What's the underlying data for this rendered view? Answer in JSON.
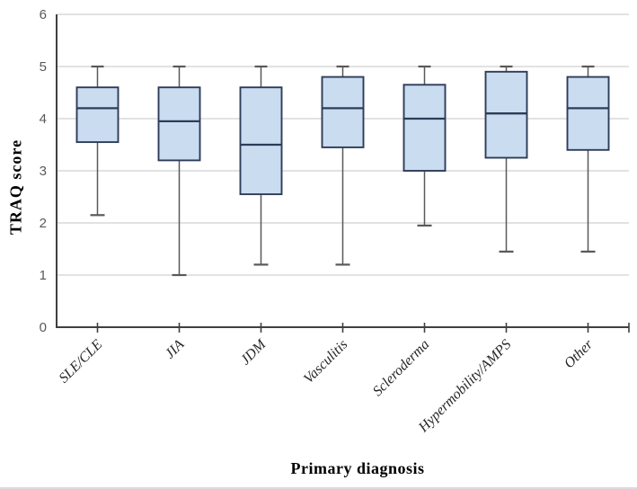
{
  "chart_data": {
    "type": "boxplot",
    "title": "",
    "xlabel": "Primary diagnosis",
    "ylabel": "TRAQ score",
    "ylim": [
      0,
      6
    ],
    "yticks": [
      0,
      1,
      2,
      3,
      4,
      5,
      6
    ],
    "grid": "horizontal",
    "legend": "none",
    "categories": [
      "SLE/CLE",
      "JIA",
      "JDM",
      "Vasculitis",
      "Scleroderma",
      "Hypermobility/AMPS",
      "Other"
    ],
    "series": [
      {
        "name": "SLE/CLE",
        "min": 2.15,
        "q1": 3.55,
        "median": 4.2,
        "q3": 4.6,
        "max": 5.0
      },
      {
        "name": "JIA",
        "min": 1.0,
        "q1": 3.2,
        "median": 3.95,
        "q3": 4.6,
        "max": 5.0
      },
      {
        "name": "JDM",
        "min": 1.2,
        "q1": 2.55,
        "median": 3.5,
        "q3": 4.6,
        "max": 5.0
      },
      {
        "name": "Vasculitis",
        "min": 1.2,
        "q1": 3.45,
        "median": 4.2,
        "q3": 4.8,
        "max": 5.0
      },
      {
        "name": "Scleroderma",
        "min": 1.95,
        "q1": 3.0,
        "median": 4.0,
        "q3": 4.65,
        "max": 5.0
      },
      {
        "name": "Hypermobility/AMPS",
        "min": 1.45,
        "q1": 3.25,
        "median": 4.1,
        "q3": 4.9,
        "max": 5.0
      },
      {
        "name": "Other",
        "min": 1.45,
        "q1": 3.4,
        "median": 4.2,
        "q3": 4.8,
        "max": 5.0
      }
    ],
    "colors": {
      "box_fill": "#c9dcf0",
      "box_border": "#2e3c58",
      "median": "#2e3c58",
      "whisker": "#595959",
      "grid": "#d9d9d9",
      "axis": "#404040",
      "tick_label": "#595959",
      "category_label": "#262626",
      "axis_title": "#000000",
      "background": "#ffffff"
    }
  }
}
